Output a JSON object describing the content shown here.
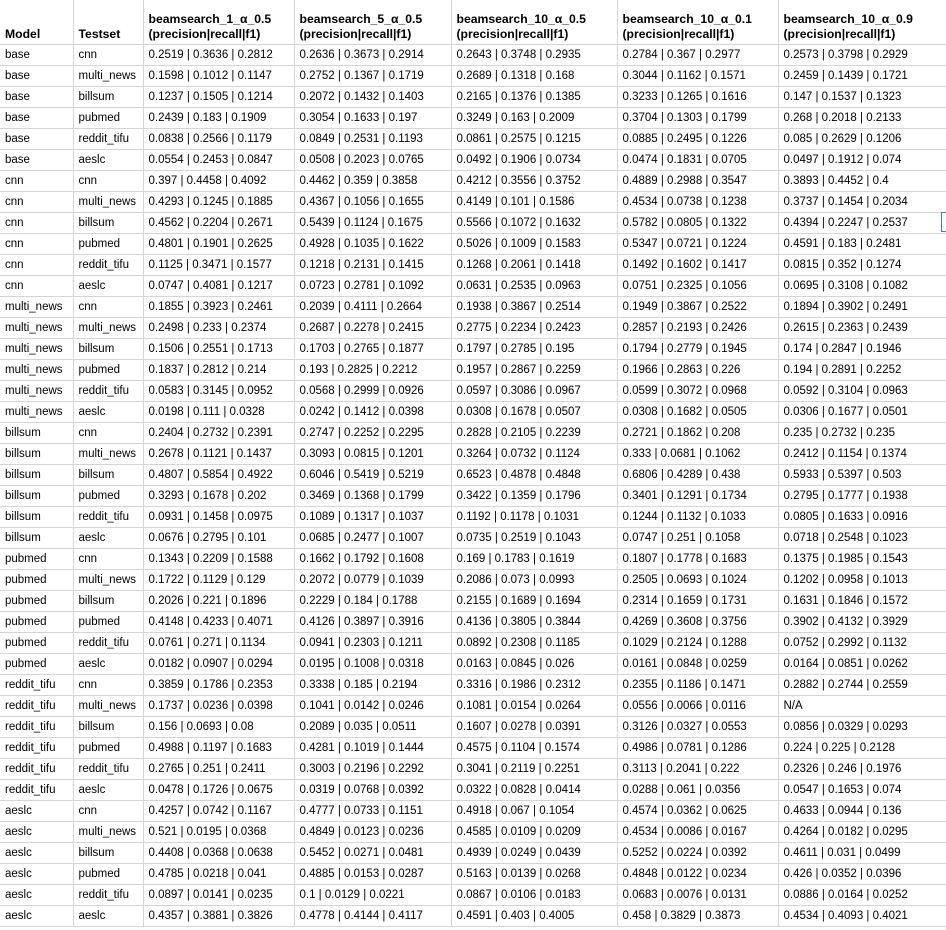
{
  "columns": [
    {
      "line1": "Model",
      "line2": ""
    },
    {
      "line1": "Testset",
      "line2": ""
    },
    {
      "line1": "beamsearch_1_α_0.5",
      "line2": "(precision|recall|f1)"
    },
    {
      "line1": "beamsearch_5_α_0.5",
      "line2": "(precision|recall|f1)"
    },
    {
      "line1": "beamsearch_10_α_0.5",
      "line2": "(precision|recall|f1)"
    },
    {
      "line1": "beamsearch_10_α_0.1",
      "line2": "(precision|recall|f1)"
    },
    {
      "line1": "beamsearch_10_α_0.9",
      "line2": "(precision|recall|f1)"
    }
  ],
  "rows": [
    [
      "base",
      "cnn",
      "0.2519 | 0.3636 | 0.2812",
      "0.2636 | 0.3673 | 0.2914",
      "0.2643 | 0.3748 | 0.2935",
      "0.2784 | 0.367 | 0.2977",
      "0.2573 | 0.3798 | 0.2929"
    ],
    [
      "base",
      "multi_news",
      "0.1598 | 0.1012 | 0.1147",
      "0.2752 | 0.1367 | 0.1719",
      "0.2689 | 0.1318 | 0.168",
      "0.3044 | 0.1162 | 0.1571",
      "0.2459 | 0.1439 | 0.1721"
    ],
    [
      "base",
      "billsum",
      "0.1237 | 0.1505 | 0.1214",
      "0.2072 | 0.1432 | 0.1403",
      "0.2165 | 0.1376 | 0.1385",
      "0.3233 | 0.1265 | 0.1616",
      "0.147 | 0.1537 | 0.1323"
    ],
    [
      "base",
      "pubmed",
      "0.2439 | 0.183 | 0.1909",
      "0.3054 | 0.1633 | 0.197",
      "0.3249 | 0.163 | 0.2009",
      "0.3704 | 0.1303 | 0.1799",
      "0.268 | 0.2018 | 0.2133"
    ],
    [
      "base",
      "reddit_tifu",
      "0.0838 | 0.2566 | 0.1179",
      "0.0849 | 0.2531 | 0.1193",
      "0.0861 | 0.2575 | 0.1215",
      "0.0885 | 0.2495 | 0.1226",
      "0.085 | 0.2629 | 0.1206"
    ],
    [
      "base",
      "aeslc",
      "0.0554 | 0.2453 | 0.0847",
      "0.0508 | 0.2023 | 0.0765",
      "0.0492 | 0.1906 | 0.0734",
      "0.0474 | 0.1831 | 0.0705",
      "0.0497 | 0.1912 | 0.074"
    ],
    [
      "cnn",
      "cnn",
      "0.397 | 0.4458 | 0.4092",
      "0.4462 | 0.359 | 0.3858",
      "0.4212 | 0.3556 | 0.3752",
      "0.4889 | 0.2988 | 0.3547",
      "0.3893 | 0.4452 | 0.4"
    ],
    [
      "cnn",
      "multi_news",
      "0.4293 | 0.1245 | 0.1885",
      "0.4367 | 0.1056 | 0.1655",
      "0.4149 | 0.101 | 0.1586",
      "0.4534 | 0.0738 | 0.1238",
      "0.3737 | 0.1454 | 0.2034"
    ],
    [
      "cnn",
      "billsum",
      "0.4562 | 0.2204 | 0.2671",
      "0.5439 | 0.1124 | 0.1675",
      "0.5566 | 0.1072 | 0.1632",
      "0.5782 | 0.0805 | 0.1322",
      "0.4394 | 0.2247 | 0.2537"
    ],
    [
      "cnn",
      "pubmed",
      "0.4801 | 0.1901 | 0.2625",
      "0.4928 | 0.1035 | 0.1622",
      "0.5026 | 0.1009 | 0.1583",
      "0.5347 | 0.0721 | 0.1224",
      "0.4591 | 0.183 | 0.2481"
    ],
    [
      "cnn",
      "reddit_tifu",
      "0.1125 | 0.3471 | 0.1577",
      "0.1218 | 0.2131 | 0.1415",
      "0.1268 | 0.2061 | 0.1418",
      "0.1492 | 0.1602 | 0.1417",
      "0.0815 | 0.352 | 0.1274"
    ],
    [
      "cnn",
      "aeslc",
      "0.0747 | 0.4081 | 0.1217",
      "0.0723 | 0.2781 | 0.1092",
      "0.0631 | 0.2535 | 0.0963",
      "0.0751 | 0.2325 | 0.1056",
      "0.0695 | 0.3108 | 0.1082"
    ],
    [
      "multi_news",
      "cnn",
      "0.1855 | 0.3923 | 0.2461",
      "0.2039 | 0.4111 | 0.2664",
      "0.1938 | 0.3867 | 0.2514",
      "0.1949 | 0.3867 | 0.2522",
      "0.1894 | 0.3902 | 0.2491"
    ],
    [
      "multi_news",
      "multi_news",
      "0.2498 | 0.233 | 0.2374",
      "0.2687 | 0.2278 | 0.2415",
      "0.2775 | 0.2234 | 0.2423",
      "0.2857 | 0.2193 | 0.2426",
      "0.2615 | 0.2363 | 0.2439"
    ],
    [
      "multi_news",
      "billsum",
      "0.1506 | 0.2551 | 0.1713",
      "0.1703 | 0.2765 | 0.1877",
      "0.1797 | 0.2785 | 0.195",
      "0.1794 | 0.2779 | 0.1945",
      "0.174 | 0.2847 | 0.1946"
    ],
    [
      "multi_news",
      "pubmed",
      "0.1837 | 0.2812 | 0.214",
      "0.193 | 0.2825 | 0.2212",
      "0.1957 | 0.2867 | 0.2259",
      "0.1966 | 0.2863 | 0.226",
      "0.194 | 0.2891 | 0.2252"
    ],
    [
      "multi_news",
      "reddit_tifu",
      "0.0583 | 0.3145 | 0.0952",
      "0.0568 | 0.2999 | 0.0926",
      "0.0597 | 0.3086 | 0.0967",
      "0.0599 | 0.3072 | 0.0968",
      "0.0592 | 0.3104 | 0.0963"
    ],
    [
      "multi_news",
      "aeslc",
      "0.0198 | 0.111 | 0.0328",
      "0.0242 | 0.1412 | 0.0398",
      "0.0308 | 0.1678 | 0.0507",
      "0.0308 | 0.1682 | 0.0505",
      "0.0306 | 0.1677 | 0.0501"
    ],
    [
      "billsum",
      "cnn",
      "0.2404 | 0.2732 | 0.2391",
      "0.2747 | 0.2252 | 0.2295",
      "0.2828 | 0.2105 | 0.2239",
      "0.2721 | 0.1862 | 0.208",
      "0.235 | 0.2732 | 0.235"
    ],
    [
      "billsum",
      "multi_news",
      "0.2678 | 0.1121 | 0.1437",
      "0.3093 | 0.0815 | 0.1201",
      "0.3264 | 0.0732 | 0.1124",
      "0.333 | 0.0681 | 0.1062",
      "0.2412 | 0.1154 | 0.1374"
    ],
    [
      "billsum",
      "billsum",
      "0.4807 | 0.5854 | 0.4922",
      "0.6046 | 0.5419 | 0.5219",
      "0.6523 | 0.4878 | 0.4848",
      "0.6806 | 0.4289 | 0.438",
      "0.5933 | 0.5397 | 0.503"
    ],
    [
      "billsum",
      "pubmed",
      "0.3293 | 0.1678 | 0.202",
      "0.3469 | 0.1368 | 0.1799",
      "0.3422 | 0.1359 | 0.1796",
      "0.3401 | 0.1291 | 0.1734",
      "0.2795 | 0.1777 | 0.1938"
    ],
    [
      "billsum",
      "reddit_tifu",
      "0.0931 | 0.1458 | 0.0975",
      "0.1089 | 0.1317 | 0.1037",
      "0.1192 | 0.1178 | 0.1031",
      "0.1244 | 0.1132 | 0.1033",
      "0.0805 | 0.1633 | 0.0916"
    ],
    [
      "billsum",
      "aeslc",
      "0.0676 | 0.2795 | 0.101",
      "0.0685 | 0.2477 | 0.1007",
      "0.0735 | 0.2519 | 0.1043",
      "0.0747 | 0.251 | 0.1058",
      "0.0718 | 0.2548 | 0.1023"
    ],
    [
      "pubmed",
      "cnn",
      "0.1343 | 0.2209 | 0.1588",
      "0.1662 | 0.1792 | 0.1608",
      "0.169 | 0.1783 | 0.1619",
      "0.1807 | 0.1778 | 0.1683",
      "0.1375 | 0.1985 | 0.1543"
    ],
    [
      "pubmed",
      "multi_news",
      "0.1722 | 0.1129 | 0.129",
      "0.2072 | 0.0779 | 0.1039",
      "0.2086 | 0.073 | 0.0993",
      "0.2505 | 0.0693 | 0.1024",
      "0.1202 | 0.0958 | 0.1013"
    ],
    [
      "pubmed",
      "billsum",
      "0.2026 | 0.221 | 0.1896",
      "0.2229 | 0.184 | 0.1788",
      "0.2155 | 0.1689 | 0.1694",
      "0.2314 | 0.1659 | 0.1731",
      "0.1631 | 0.1846 | 0.1572"
    ],
    [
      "pubmed",
      "pubmed",
      "0.4148 | 0.4233 | 0.4071",
      "0.4126 | 0.3897 | 0.3916",
      "0.4136 | 0.3805 | 0.3844",
      "0.4269 | 0.3608 | 0.3756",
      "0.3902 | 0.4132 | 0.3929"
    ],
    [
      "pubmed",
      "reddit_tifu",
      "0.0761 | 0.271 | 0.1134",
      "0.0941 | 0.2303 | 0.1211",
      "0.0892 | 0.2308 | 0.1185",
      "0.1029 | 0.2124 | 0.1288",
      "0.0752 | 0.2992 | 0.1132"
    ],
    [
      "pubmed",
      "aeslc",
      "0.0182 | 0.0907 | 0.0294",
      "0.0195 | 0.1008 | 0.0318",
      "0.0163 | 0.0845 | 0.026",
      "0.0161 | 0.0848 | 0.0259",
      "0.0164 | 0.0851 | 0.0262"
    ],
    [
      "reddit_tifu",
      "cnn",
      "0.3859 | 0.1786 | 0.2353",
      "0.3338 | 0.185 | 0.2194",
      "0.3316 | 0.1986 | 0.2312",
      "0.2355 | 0.1186 | 0.1471",
      "0.2882 | 0.2744 | 0.2559"
    ],
    [
      "reddit_tifu",
      "multi_news",
      "0.1737 | 0.0236 | 0.0398",
      "0.1041 | 0.0142 | 0.0246",
      "0.1081 | 0.0154 | 0.0264",
      "0.0556 | 0.0066 | 0.0116",
      "N/A"
    ],
    [
      "reddit_tifu",
      "billsum",
      "0.156 | 0.0693 | 0.08",
      "0.2089 | 0.035 | 0.0511",
      "0.1607 | 0.0278 | 0.0391",
      "0.3126 | 0.0327 | 0.0553",
      "0.0856 | 0.0329 | 0.0293"
    ],
    [
      "reddit_tifu",
      "pubmed",
      "0.4988 | 0.1197 | 0.1683",
      "0.4281 | 0.1019 | 0.1444",
      "0.4575 | 0.1104 | 0.1574",
      "0.4986 | 0.0781 | 0.1286",
      "0.224 | 0.225 | 0.2128"
    ],
    [
      "reddit_tifu",
      "reddit_tifu",
      "0.2765 | 0.251 | 0.2411",
      "0.3003 | 0.2196 | 0.2292",
      "0.3041 | 0.2119 | 0.2251",
      "0.3113 | 0.2041 | 0.222",
      "0.2326 | 0.246 | 0.1976"
    ],
    [
      "reddit_tifu",
      "aeslc",
      "0.0478 | 0.1726 | 0.0675",
      "0.0319 | 0.0768 | 0.0392",
      "0.0322 | 0.0828 | 0.0414",
      "0.0288 | 0.061 | 0.0356",
      "0.0547 | 0.1653 | 0.074"
    ],
    [
      "aeslc",
      "cnn",
      "0.4257 | 0.0742 | 0.1167",
      "0.4777 | 0.0733 | 0.1151",
      "0.4918 | 0.067 | 0.1054",
      "0.4574 | 0.0362 | 0.0625",
      "0.4633 | 0.0944 | 0.136"
    ],
    [
      "aeslc",
      "multi_news",
      "0.521 | 0.0195 | 0.0368",
      "0.4849 | 0.0123 | 0.0236",
      "0.4585 | 0.0109 | 0.0209",
      "0.4534 | 0.0086 | 0.0167",
      "0.4264 | 0.0182 | 0.0295"
    ],
    [
      "aeslc",
      "billsum",
      "0.4408 | 0.0368 | 0.0638",
      "0.5452 | 0.0271 | 0.0481",
      "0.4939 | 0.0249 | 0.0439",
      "0.5252 | 0.0224 | 0.0392",
      "0.4611 | 0.031 | 0.0499"
    ],
    [
      "aeslc",
      "pubmed",
      "0.4785 | 0.0218 | 0.041",
      "0.4885 | 0.0153 | 0.0287",
      "0.5163 | 0.0139 | 0.0268",
      "0.4848 | 0.0122 | 0.0234",
      "0.426 | 0.0352 | 0.0396"
    ],
    [
      "aeslc",
      "reddit_tifu",
      "0.0897 | 0.0141 | 0.0235",
      "0.1 | 0.0129 | 0.0221",
      "0.0867 | 0.0106 | 0.0183",
      "0.0683 | 0.0076 | 0.0131",
      "0.0886 | 0.0164 | 0.0252"
    ],
    [
      "aeslc",
      "aeslc",
      "0.4357 | 0.3881 | 0.3826",
      "0.4778 | 0.4144 | 0.4117",
      "0.4591 | 0.403 | 0.4005",
      "0.458 | 0.3829 | 0.3873",
      "0.4534 | 0.4093 | 0.4021"
    ]
  ]
}
